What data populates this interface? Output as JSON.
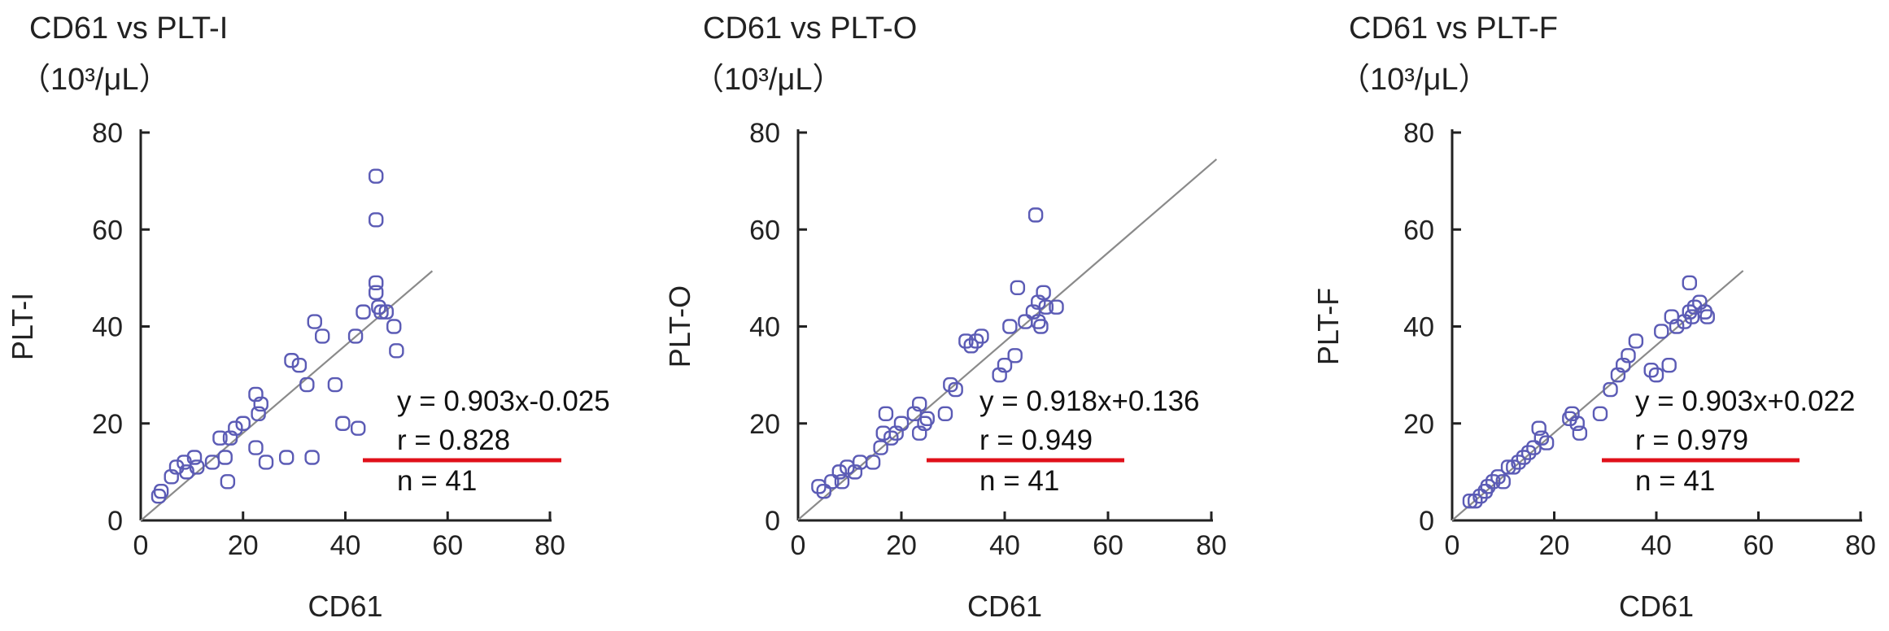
{
  "colors": {
    "marker": "#5b5bb5",
    "regression_line": "#8a8a8a",
    "underline": "#e0101a",
    "axis": "#222222"
  },
  "chart_data": [
    {
      "type": "scatter",
      "title": "CD61 vs PLT-I",
      "unit": "（10³/μL）",
      "xlabel": "CD61",
      "ylabel": "PLT-I",
      "xlim": [
        0,
        80
      ],
      "ylim": [
        0,
        80
      ],
      "xticks": [
        "0",
        "20",
        "40",
        "60",
        "80"
      ],
      "yticks": [
        "0",
        "20",
        "40",
        "60",
        "80"
      ],
      "grid": false,
      "regression": {
        "slope": 0.903,
        "intercept": -0.025,
        "x_range": [
          0,
          57
        ]
      },
      "annotations": [
        "y = 0.903x-0.025",
        "r = 0.828",
        "n = 41"
      ],
      "underline_target": "r = 0.828",
      "points": [
        {
          "x": 3.5,
          "y": 5
        },
        {
          "x": 4,
          "y": 6
        },
        {
          "x": 6,
          "y": 9
        },
        {
          "x": 7,
          "y": 11
        },
        {
          "x": 8.5,
          "y": 12
        },
        {
          "x": 9,
          "y": 10
        },
        {
          "x": 10.5,
          "y": 13
        },
        {
          "x": 11,
          "y": 11
        },
        {
          "x": 14,
          "y": 12
        },
        {
          "x": 15.5,
          "y": 17
        },
        {
          "x": 16.5,
          "y": 13
        },
        {
          "x": 17,
          "y": 8
        },
        {
          "x": 17.5,
          "y": 17
        },
        {
          "x": 18.5,
          "y": 19
        },
        {
          "x": 20,
          "y": 20
        },
        {
          "x": 22.5,
          "y": 26
        },
        {
          "x": 22.5,
          "y": 15
        },
        {
          "x": 23,
          "y": 22
        },
        {
          "x": 23.5,
          "y": 24
        },
        {
          "x": 24.5,
          "y": 12
        },
        {
          "x": 28.5,
          "y": 13
        },
        {
          "x": 29.5,
          "y": 33
        },
        {
          "x": 31,
          "y": 32
        },
        {
          "x": 32.5,
          "y": 28
        },
        {
          "x": 33.5,
          "y": 13
        },
        {
          "x": 34,
          "y": 41
        },
        {
          "x": 35.5,
          "y": 38
        },
        {
          "x": 38,
          "y": 28
        },
        {
          "x": 39.5,
          "y": 20
        },
        {
          "x": 42,
          "y": 38
        },
        {
          "x": 42.5,
          "y": 19
        },
        {
          "x": 43.5,
          "y": 43
        },
        {
          "x": 46,
          "y": 71
        },
        {
          "x": 46,
          "y": 62
        },
        {
          "x": 46,
          "y": 49
        },
        {
          "x": 46,
          "y": 47
        },
        {
          "x": 46.5,
          "y": 44
        },
        {
          "x": 47,
          "y": 43
        },
        {
          "x": 48,
          "y": 43
        },
        {
          "x": 49.5,
          "y": 40
        },
        {
          "x": 50,
          "y": 35
        }
      ]
    },
    {
      "type": "scatter",
      "title": "CD61 vs PLT-O",
      "unit": "（10³/μL）",
      "xlabel": "CD61",
      "ylabel": "PLT-O",
      "xlim": [
        0,
        80
      ],
      "ylim": [
        0,
        80
      ],
      "xticks": [
        "0",
        "20",
        "40",
        "60",
        "80"
      ],
      "yticks": [
        "0",
        "20",
        "40",
        "60",
        "80"
      ],
      "grid": false,
      "regression": {
        "slope": 0.918,
        "intercept": 0.136,
        "x_range": [
          0,
          81
        ]
      },
      "annotations": [
        "y = 0.918x+0.136",
        "r = 0.949",
        "n = 41"
      ],
      "underline_target": "r = 0.949",
      "points": [
        {
          "x": 4,
          "y": 7
        },
        {
          "x": 5,
          "y": 6
        },
        {
          "x": 6.5,
          "y": 8
        },
        {
          "x": 8,
          "y": 10
        },
        {
          "x": 8.5,
          "y": 8
        },
        {
          "x": 9.5,
          "y": 11
        },
        {
          "x": 11,
          "y": 10
        },
        {
          "x": 12,
          "y": 12
        },
        {
          "x": 14.5,
          "y": 12
        },
        {
          "x": 16,
          "y": 15
        },
        {
          "x": 16.5,
          "y": 18
        },
        {
          "x": 17,
          "y": 22
        },
        {
          "x": 18,
          "y": 17
        },
        {
          "x": 19,
          "y": 18
        },
        {
          "x": 20,
          "y": 20
        },
        {
          "x": 22.5,
          "y": 22
        },
        {
          "x": 23.5,
          "y": 24
        },
        {
          "x": 23.5,
          "y": 18
        },
        {
          "x": 24.5,
          "y": 20
        },
        {
          "x": 25,
          "y": 21
        },
        {
          "x": 28.5,
          "y": 22
        },
        {
          "x": 29.5,
          "y": 28
        },
        {
          "x": 30.5,
          "y": 27
        },
        {
          "x": 32.5,
          "y": 37
        },
        {
          "x": 33.5,
          "y": 36
        },
        {
          "x": 34.5,
          "y": 37
        },
        {
          "x": 35.5,
          "y": 38
        },
        {
          "x": 39,
          "y": 30
        },
        {
          "x": 40,
          "y": 32
        },
        {
          "x": 41,
          "y": 40
        },
        {
          "x": 42,
          "y": 34
        },
        {
          "x": 42.5,
          "y": 48
        },
        {
          "x": 44,
          "y": 41
        },
        {
          "x": 45.5,
          "y": 43
        },
        {
          "x": 46,
          "y": 63
        },
        {
          "x": 46.5,
          "y": 41
        },
        {
          "x": 46.5,
          "y": 45
        },
        {
          "x": 47,
          "y": 40
        },
        {
          "x": 47.5,
          "y": 47
        },
        {
          "x": 48,
          "y": 44
        },
        {
          "x": 50,
          "y": 44
        }
      ]
    },
    {
      "type": "scatter",
      "title": "CD61 vs PLT-F",
      "unit": "（10³/μL）",
      "xlabel": "CD61",
      "ylabel": "PLT-F",
      "xlim": [
        0,
        80
      ],
      "ylim": [
        0,
        80
      ],
      "xticks": [
        "0",
        "20",
        "40",
        "60",
        "80"
      ],
      "yticks": [
        "0",
        "20",
        "40",
        "60",
        "80"
      ],
      "grid": false,
      "regression": {
        "slope": 0.903,
        "intercept": 0.022,
        "x_range": [
          0,
          57
        ]
      },
      "annotations": [
        "y = 0.903x+0.022",
        "r = 0.979",
        "n = 41"
      ],
      "underline_target": "r = 0.979",
      "points": [
        {
          "x": 3.5,
          "y": 4
        },
        {
          "x": 4.5,
          "y": 4
        },
        {
          "x": 5.5,
          "y": 5
        },
        {
          "x": 6.5,
          "y": 6
        },
        {
          "x": 7,
          "y": 7
        },
        {
          "x": 8,
          "y": 8
        },
        {
          "x": 9,
          "y": 9
        },
        {
          "x": 10,
          "y": 8
        },
        {
          "x": 11,
          "y": 11
        },
        {
          "x": 12,
          "y": 11
        },
        {
          "x": 13,
          "y": 12
        },
        {
          "x": 14,
          "y": 13
        },
        {
          "x": 15,
          "y": 14
        },
        {
          "x": 16,
          "y": 15
        },
        {
          "x": 17,
          "y": 19
        },
        {
          "x": 17.5,
          "y": 17
        },
        {
          "x": 18.5,
          "y": 16
        },
        {
          "x": 23,
          "y": 21
        },
        {
          "x": 23.5,
          "y": 22
        },
        {
          "x": 24.5,
          "y": 20
        },
        {
          "x": 25,
          "y": 18
        },
        {
          "x": 29,
          "y": 22
        },
        {
          "x": 31,
          "y": 27
        },
        {
          "x": 32.5,
          "y": 30
        },
        {
          "x": 33.5,
          "y": 32
        },
        {
          "x": 34.5,
          "y": 34
        },
        {
          "x": 36,
          "y": 37
        },
        {
          "x": 39,
          "y": 31
        },
        {
          "x": 40,
          "y": 30
        },
        {
          "x": 41,
          "y": 39
        },
        {
          "x": 42.5,
          "y": 32
        },
        {
          "x": 43,
          "y": 42
        },
        {
          "x": 44,
          "y": 40
        },
        {
          "x": 45.5,
          "y": 41
        },
        {
          "x": 46.5,
          "y": 49
        },
        {
          "x": 46.5,
          "y": 43
        },
        {
          "x": 47,
          "y": 42
        },
        {
          "x": 47.5,
          "y": 44
        },
        {
          "x": 48.5,
          "y": 45
        },
        {
          "x": 49.5,
          "y": 43
        },
        {
          "x": 50,
          "y": 42
        }
      ]
    }
  ]
}
